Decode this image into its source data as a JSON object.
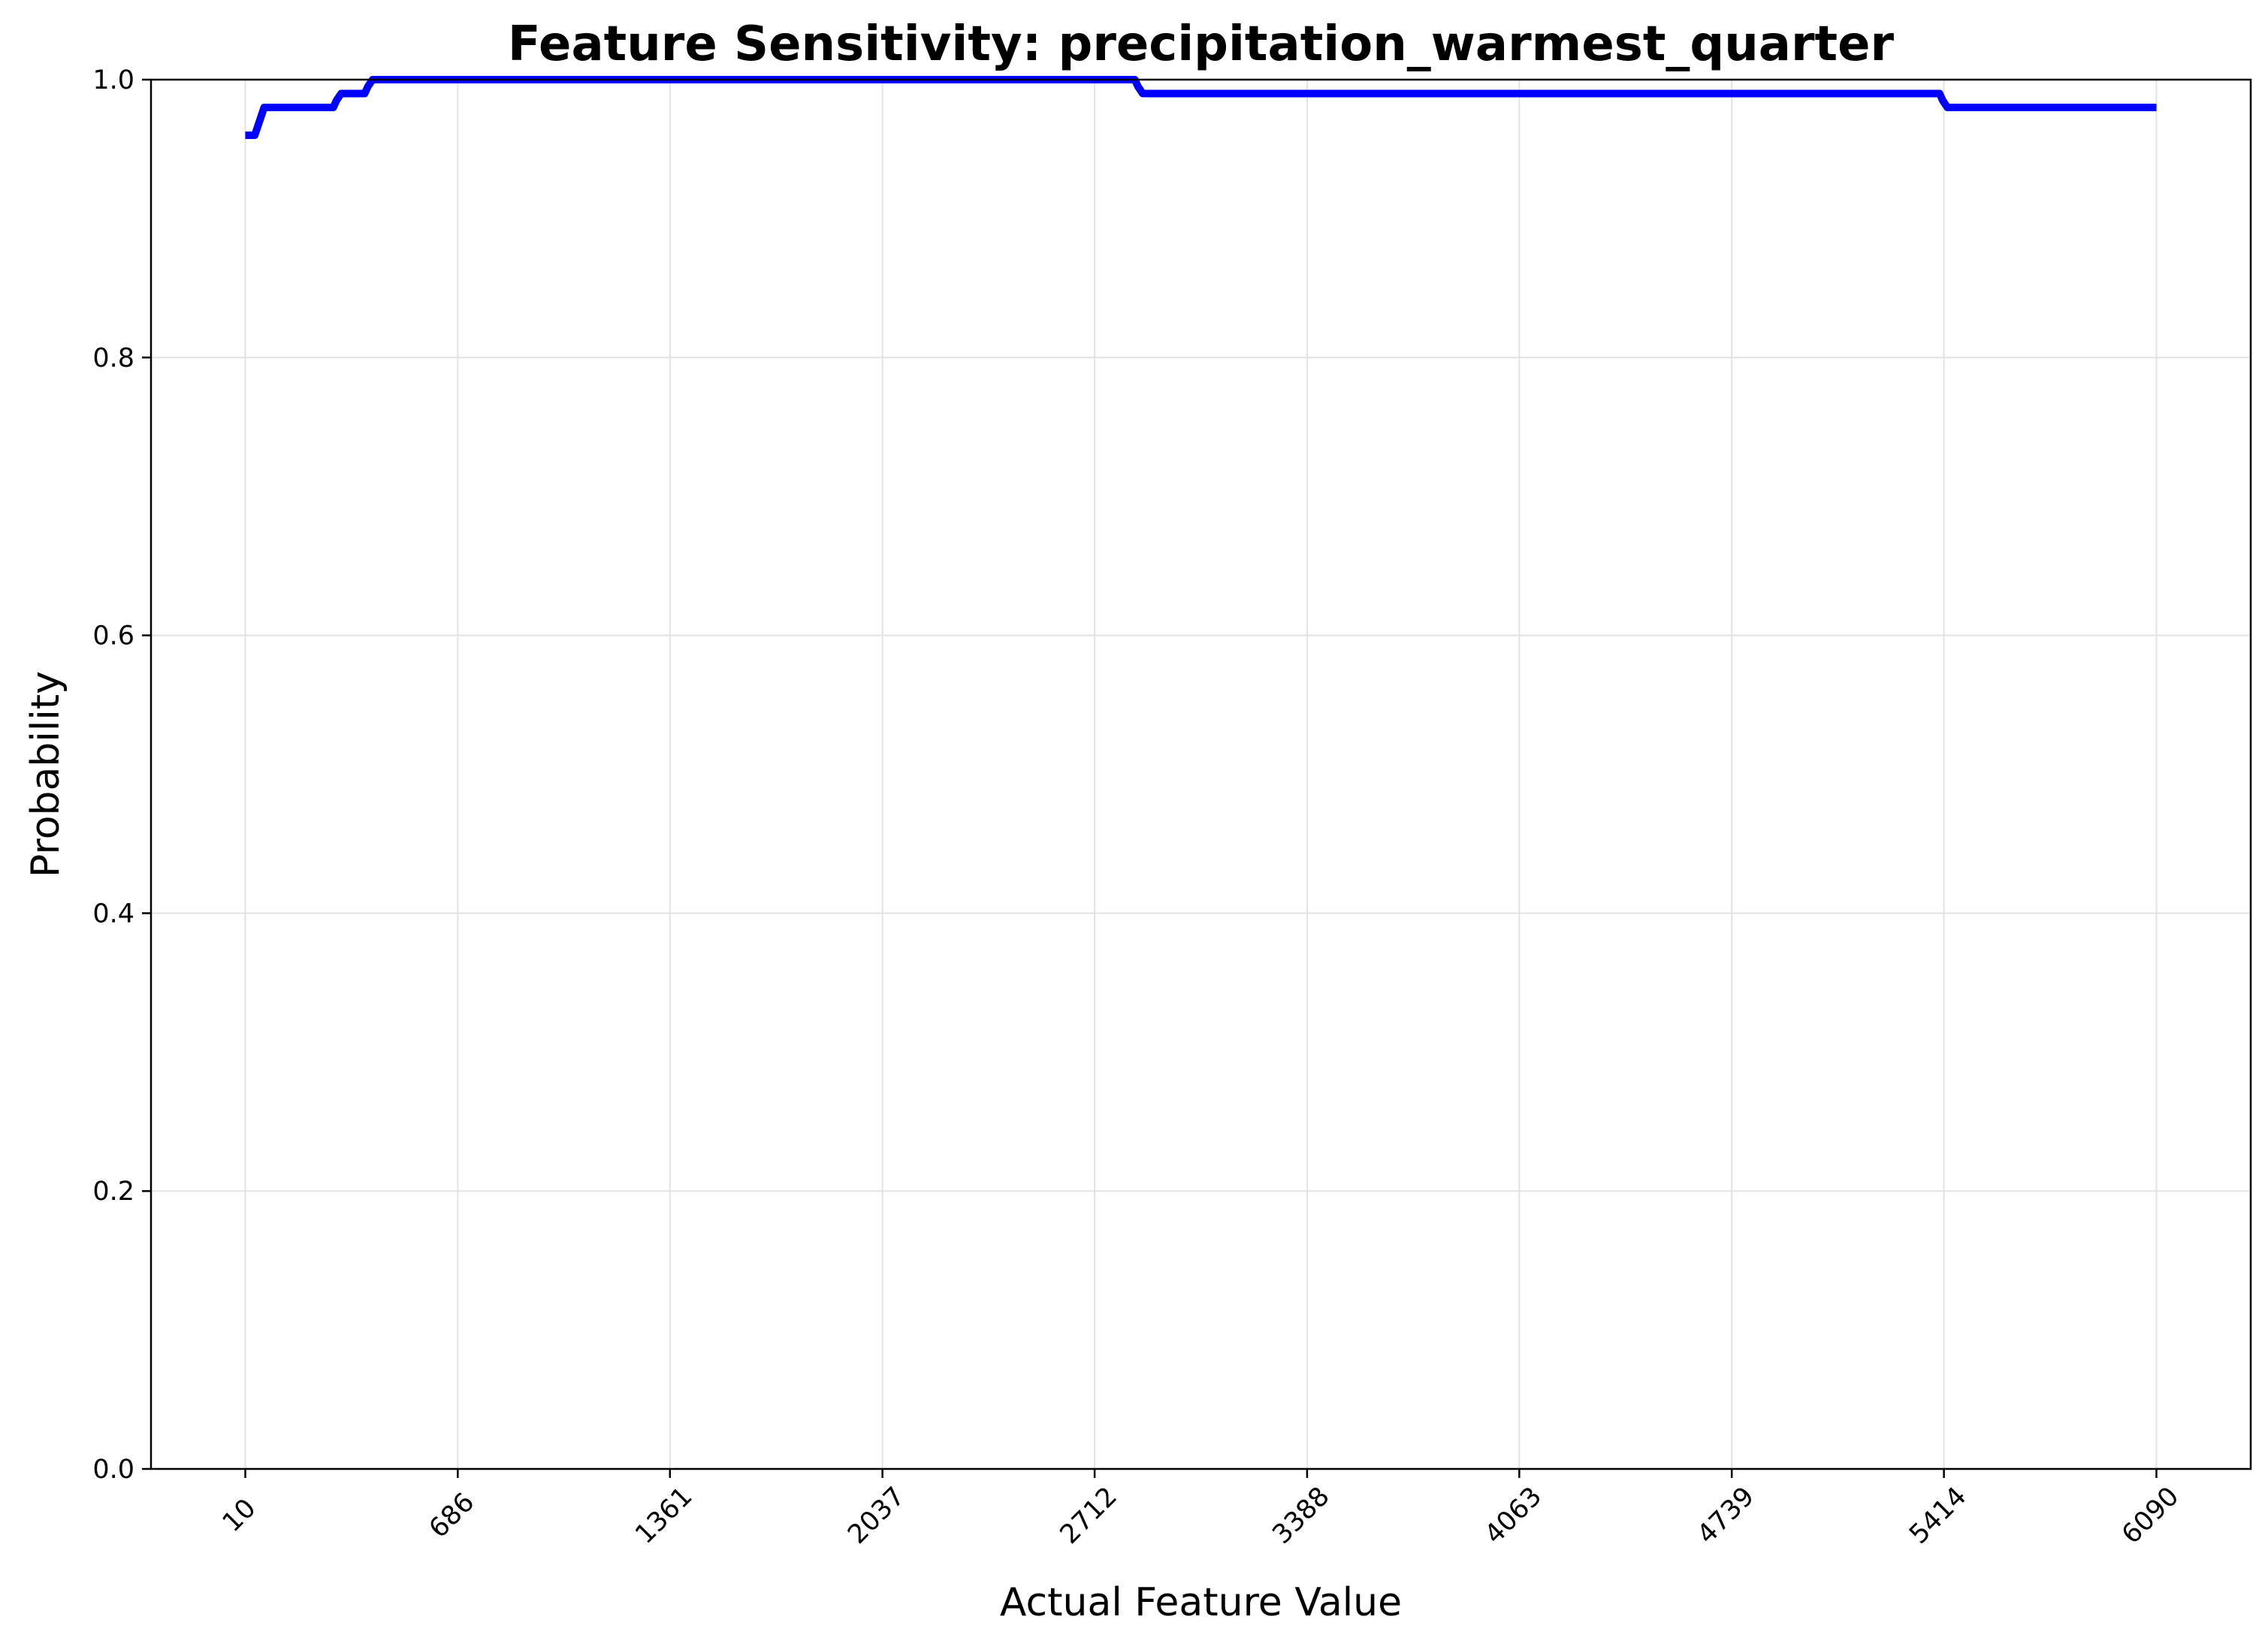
{
  "chart_data": {
    "type": "line",
    "title": "Feature Sensitivity: precipitation_warmest_quarter",
    "xlabel": "Actual Feature Value",
    "ylabel": "Probability",
    "xlim": [
      -290,
      6390
    ],
    "ylim": [
      0.0,
      1.0
    ],
    "grid": true,
    "xticks": [
      10,
      686,
      1361,
      2037,
      2712,
      3388,
      4063,
      4739,
      5414,
      6090
    ],
    "xtick_labels": [
      "10",
      "686",
      "1361",
      "2037",
      "2712",
      "3388",
      "4063",
      "4739",
      "5414",
      "6090"
    ],
    "yticks": [
      0.0,
      0.2,
      0.4,
      0.6,
      0.8,
      1.0
    ],
    "ytick_labels": [
      "0.0",
      "0.2",
      "0.4",
      "0.6",
      "0.8",
      "1.0"
    ],
    "series": [
      {
        "color": "#0000ff",
        "x": [
          10,
          40,
          55,
          70,
          290,
          300,
          315,
          390,
          400,
          415,
          2840,
          2850,
          2865,
          5400,
          5410,
          5425,
          6090
        ],
        "y": [
          0.96,
          0.96,
          0.97,
          0.98,
          0.98,
          0.985,
          0.99,
          0.99,
          0.995,
          1.0,
          1.0,
          0.995,
          0.99,
          0.99,
          0.985,
          0.98,
          0.98
        ]
      }
    ]
  }
}
